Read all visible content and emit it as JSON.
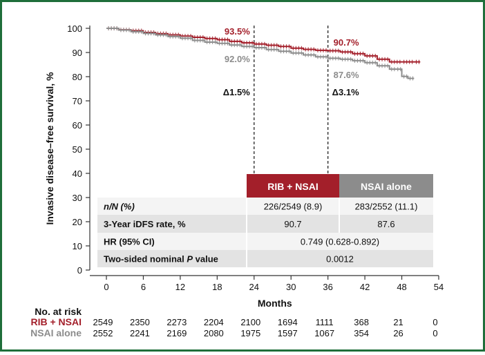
{
  "chart_data": {
    "type": "line",
    "title": "",
    "xlabel": "Months",
    "ylabel": "Invasive disease–free survival, %",
    "xlim": [
      0,
      54
    ],
    "ylim": [
      0,
      100
    ],
    "x_ticks": [
      "0",
      "6",
      "12",
      "18",
      "24",
      "30",
      "36",
      "42",
      "48",
      "54"
    ],
    "y_ticks": [
      "0",
      "10",
      "20",
      "30",
      "40",
      "50",
      "60",
      "70",
      "80",
      "90",
      "100"
    ],
    "colors": {
      "rib": "#a31f2a",
      "nsai": "#8c8c8c",
      "frame": "#1f6e3a",
      "table_shade": "#e3e3e3"
    },
    "series": [
      {
        "name": "RIB + NSAI",
        "x": [
          0,
          2,
          4,
          6,
          8,
          10,
          12,
          14,
          16,
          18,
          20,
          22,
          24,
          26,
          28,
          30,
          32,
          34,
          36,
          38,
          40,
          42,
          44,
          46,
          48,
          50,
          51
        ],
        "y": [
          100,
          99.4,
          99.0,
          98.3,
          97.8,
          97.3,
          96.8,
          96.3,
          95.8,
          95.3,
          94.6,
          94.0,
          93.5,
          93.0,
          92.5,
          91.8,
          91.3,
          90.9,
          90.7,
          90.2,
          89.5,
          88.6,
          87.2,
          86.1,
          86.1,
          86.1,
          86.1
        ]
      },
      {
        "name": "NSAI alone",
        "x": [
          0,
          2,
          4,
          6,
          8,
          10,
          12,
          14,
          16,
          18,
          20,
          22,
          24,
          26,
          28,
          30,
          32,
          34,
          36,
          38,
          40,
          42,
          44,
          46,
          47,
          48,
          49,
          50
        ],
        "y": [
          100,
          99.3,
          98.6,
          97.9,
          97.3,
          96.6,
          95.9,
          95.0,
          94.3,
          93.8,
          93.1,
          92.5,
          92.0,
          91.2,
          90.5,
          89.8,
          89.0,
          88.2,
          87.6,
          87.2,
          86.6,
          85.8,
          84.5,
          83.1,
          83.1,
          80.1,
          79.3,
          79.3
        ]
      }
    ],
    "landmarks": [
      {
        "x": 24,
        "rib_label": "93.5%",
        "rib_y": 93.5,
        "nsai_label": "92.0%",
        "nsai_y": 92.0,
        "delta": "Δ1.5%"
      },
      {
        "x": 36,
        "rib_label": "90.7%",
        "rib_y": 90.7,
        "nsai_label": "87.6%",
        "nsai_y": 87.6,
        "delta": "Δ3.1%"
      }
    ],
    "table": {
      "headers": [
        "RIB + NSAI",
        "NSAI alone"
      ],
      "rows": [
        {
          "label": "n/N (%)",
          "rib": "226/2549 (8.9)",
          "nsai": "283/2552 (11.1)"
        },
        {
          "label": "3-Year iDFS rate, %",
          "rib": "90.7",
          "nsai": "87.6"
        },
        {
          "label": "HR (95% CI)",
          "merged": "0.749 (0.628-0.892)"
        },
        {
          "label_prefix": "Two-sided nominal ",
          "label_italic": "P",
          "label_suffix": " value",
          "merged": "0.0012"
        }
      ]
    },
    "at_risk": {
      "title": "No. at risk",
      "rows": [
        {
          "name": "RIB + NSAI",
          "values": [
            "2549",
            "2350",
            "2273",
            "2204",
            "2100",
            "1694",
            "1111",
            "368",
            "21",
            "0"
          ]
        },
        {
          "name": "NSAI alone",
          "values": [
            "2552",
            "2241",
            "2169",
            "2080",
            "1975",
            "1597",
            "1067",
            "354",
            "26",
            "0"
          ]
        }
      ]
    }
  }
}
